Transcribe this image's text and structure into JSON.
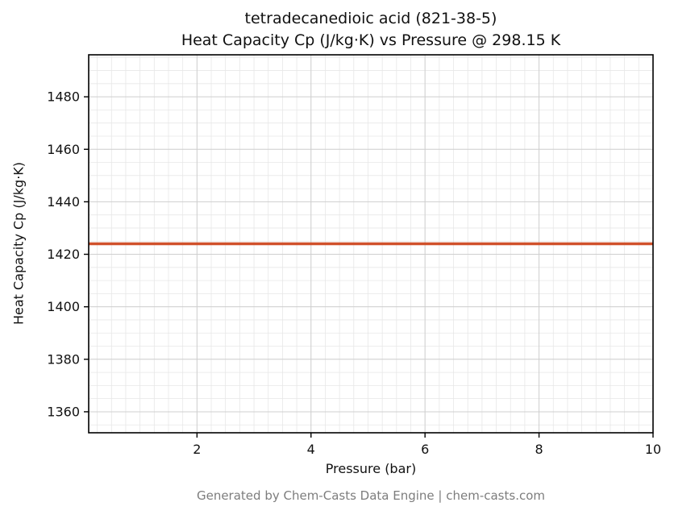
{
  "title": {
    "line1": "tetradecanedioic acid (821-38-5)",
    "line2": "Heat Capacity Cp (J/kg·K) vs Pressure @ 298.15 K"
  },
  "footer": "Generated by Chem-Casts Data Engine | chem-casts.com",
  "chart_data": {
    "type": "line",
    "title": "tetradecanedioic acid (821-38-5) — Heat Capacity Cp (J/kg·K) vs Pressure @ 298.15 K",
    "xlabel": "Pressure (bar)",
    "ylabel": "Heat Capacity Cp (J/kg·K)",
    "xlim": [
      0.1,
      10
    ],
    "ylim": [
      1352,
      1496
    ],
    "xticks": [
      2,
      4,
      6,
      8,
      10
    ],
    "yticks": [
      1360,
      1380,
      1400,
      1420,
      1440,
      1460,
      1480
    ],
    "grid": true,
    "minor_grid": true,
    "x_minor_step": 0.25,
    "y_minor_step": 5,
    "legend": "none",
    "series": [
      {
        "name": "Heat Capacity Cp",
        "color": "#d0512b",
        "linewidth": 3.6,
        "x": [
          0.1,
          10
        ],
        "y": [
          1424,
          1424
        ]
      }
    ],
    "colors": {
      "axis_border": "#000000",
      "major_grid": "#cfcfcf",
      "minor_grid": "#e7e7e7",
      "background": "#ffffff"
    }
  }
}
